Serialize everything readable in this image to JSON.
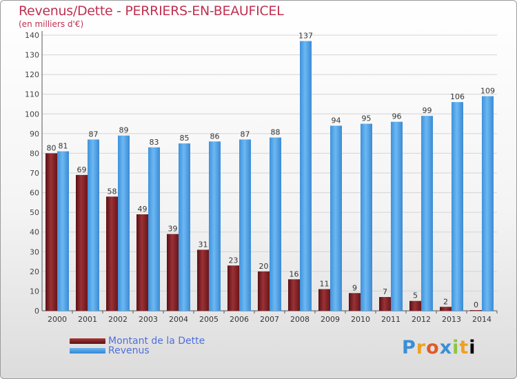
{
  "chart_data": {
    "type": "bar",
    "title": "Revenus/Dette - PERRIERS-EN-BEAUFICEL",
    "subtitle": "(en milliers d'€)",
    "categories": [
      "2000",
      "2001",
      "2002",
      "2003",
      "2004",
      "2005",
      "2006",
      "2007",
      "2008",
      "2009",
      "2010",
      "2011",
      "2012",
      "2013",
      "2014"
    ],
    "series": [
      {
        "name": "Montant de la Dette",
        "color": "#7a1e22",
        "values": [
          80,
          69,
          58,
          49,
          39,
          31,
          23,
          20,
          16,
          11,
          9,
          7,
          5,
          2,
          0
        ]
      },
      {
        "name": "Revenus",
        "color": "#4a9ee6",
        "values": [
          81,
          87,
          89,
          83,
          85,
          86,
          87,
          88,
          137,
          94,
          95,
          96,
          99,
          106,
          109
        ]
      }
    ],
    "ylim": [
      0,
      140
    ],
    "yticks": [
      0,
      10,
      20,
      30,
      40,
      50,
      60,
      70,
      80,
      90,
      100,
      110,
      120,
      130,
      140
    ],
    "grid": true,
    "legend_position": "bottom-left"
  },
  "logo": {
    "letters": [
      "P",
      "r",
      "o",
      "x",
      "i",
      "t",
      "i"
    ]
  }
}
